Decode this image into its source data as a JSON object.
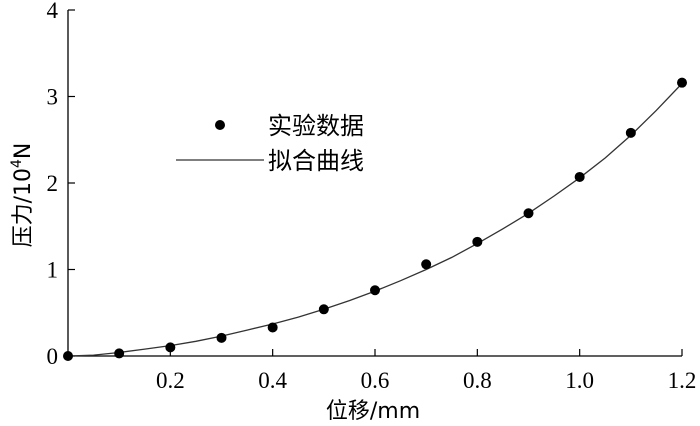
{
  "chart_data": {
    "type": "scatter",
    "xlabel": "位移/mm",
    "ylabel_main": "压力/10",
    "ylabel_sup": "4",
    "ylabel_unit": "N",
    "xlim": [
      0,
      1.2
    ],
    "ylim": [
      0,
      4
    ],
    "x_ticks": [
      0.2,
      0.4,
      0.6,
      0.8,
      1.0,
      1.2
    ],
    "x_tick_labels": [
      "0.2",
      "0.4",
      "0.6",
      "0.8",
      "1.0",
      "1.2"
    ],
    "y_ticks": [
      0,
      1,
      2,
      3,
      4
    ],
    "y_tick_labels": [
      "0",
      "1",
      "2",
      "3",
      "4"
    ],
    "grid": false,
    "legend_position": "upper-left",
    "series": [
      {
        "name": "实验数据",
        "kind": "markers",
        "color": "#000000",
        "x": [
          0.0,
          0.1,
          0.2,
          0.3,
          0.4,
          0.5,
          0.6,
          0.7,
          0.8,
          0.9,
          1.0,
          1.1,
          1.2
        ],
        "y": [
          0.0,
          0.03,
          0.1,
          0.21,
          0.33,
          0.54,
          0.76,
          1.06,
          1.32,
          1.65,
          2.07,
          2.58,
          3.16
        ]
      },
      {
        "name": "拟合曲线",
        "kind": "line",
        "color": "#000000",
        "x": [
          0.0,
          0.05,
          0.1,
          0.15,
          0.2,
          0.25,
          0.3,
          0.35,
          0.4,
          0.45,
          0.5,
          0.55,
          0.6,
          0.65,
          0.7,
          0.75,
          0.8,
          0.85,
          0.9,
          0.95,
          1.0,
          1.05,
          1.1,
          1.15,
          1.2
        ],
        "y": [
          0.0,
          0.01,
          0.04,
          0.08,
          0.12,
          0.17,
          0.23,
          0.3,
          0.37,
          0.45,
          0.54,
          0.64,
          0.75,
          0.87,
          1.0,
          1.14,
          1.3,
          1.47,
          1.65,
          1.85,
          2.06,
          2.29,
          2.55,
          2.84,
          3.15
        ]
      }
    ]
  }
}
